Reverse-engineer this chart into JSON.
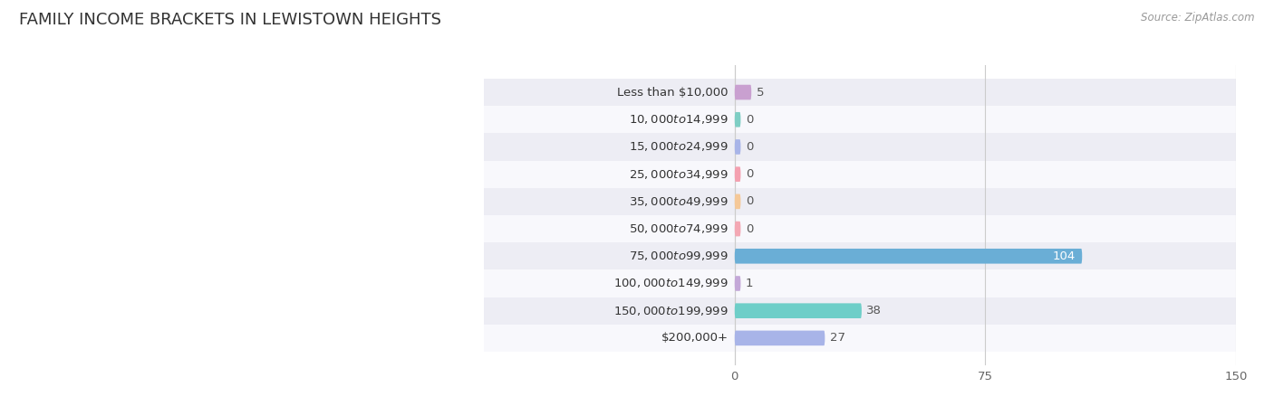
{
  "title": "FAMILY INCOME BRACKETS IN LEWISTOWN HEIGHTS",
  "source": "Source: ZipAtlas.com",
  "categories": [
    "Less than $10,000",
    "$10,000 to $14,999",
    "$15,000 to $24,999",
    "$25,000 to $34,999",
    "$35,000 to $49,999",
    "$50,000 to $74,999",
    "$75,000 to $99,999",
    "$100,000 to $149,999",
    "$150,000 to $199,999",
    "$200,000+"
  ],
  "values": [
    5,
    0,
    0,
    0,
    0,
    0,
    104,
    1,
    38,
    27
  ],
  "bar_colors": [
    "#c9a0d0",
    "#7ecec4",
    "#a8b4e8",
    "#f4a0b0",
    "#f5c898",
    "#f4a8b4",
    "#6aaed6",
    "#c4a8d8",
    "#6ecec8",
    "#a8b4e8"
  ],
  "bg_row_colors": [
    "#ededf4",
    "#f8f8fc"
  ],
  "xlim": [
    0,
    150
  ],
  "xticks": [
    0,
    75,
    150
  ],
  "title_fontsize": 13,
  "label_fontsize": 9.5,
  "value_fontsize": 9.5,
  "bar_height": 0.55,
  "background_color": "#ffffff",
  "source_color": "#999999",
  "value_color_inside": "#ffffff",
  "value_color_outside": "#555555"
}
